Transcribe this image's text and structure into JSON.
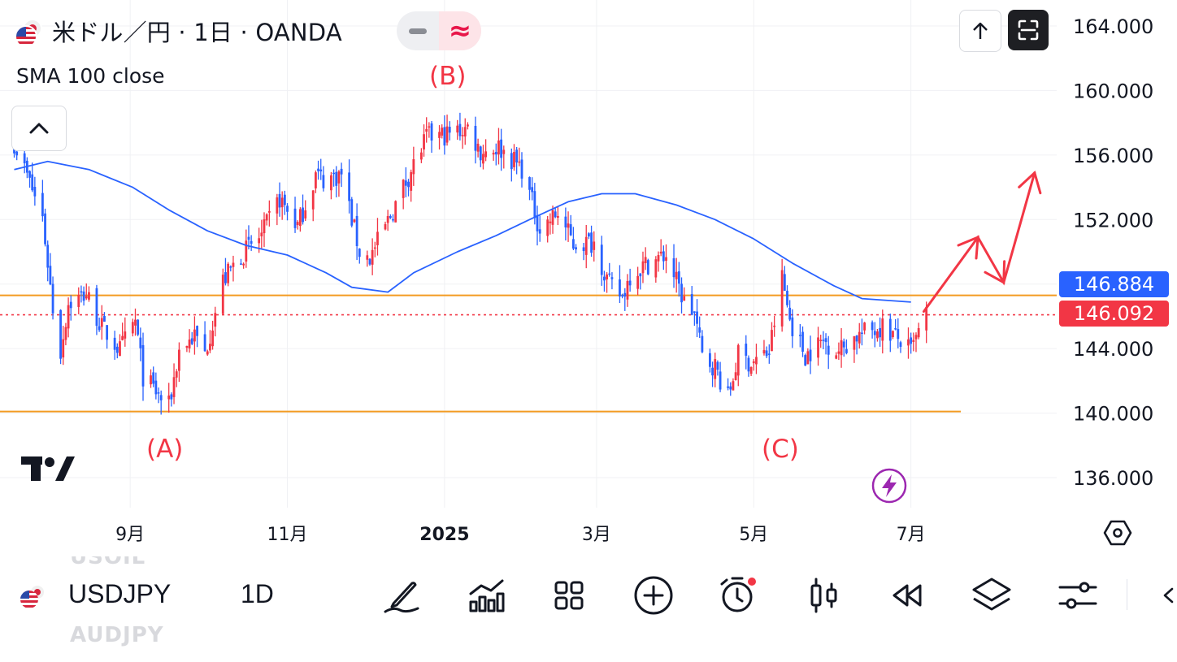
{
  "header": {
    "title": "米ドル／円 · 1日 · OANDA",
    "indicator": "SMA 100 close",
    "pill_glyph": "≈"
  },
  "colors": {
    "up": "#f23645",
    "down": "#2962ff",
    "sma": "#2962ff",
    "level": "#f39b22",
    "annotation": "#f23645",
    "bolt": "#9c27b0"
  },
  "annotations": {
    "a": "(A)",
    "b": "(B)",
    "c": "(C)"
  },
  "toolbar": {
    "symbol": "USDJPY",
    "interval": "1D",
    "ghost_above": "USOIL",
    "ghost_below": "AUDJPY",
    "icons": [
      "drawing-pen-icon",
      "indicators-icon",
      "layouts-icon",
      "add-icon",
      "alert-clock-icon",
      "candles-icon",
      "replay-icon",
      "layers-icon",
      "settings-sliders-icon",
      "more-chevron-icon"
    ]
  },
  "chart_data": {
    "type": "candlestick",
    "symbol": "米ドル／円",
    "interval": "1日",
    "source": "OANDA",
    "y_ticks": [
      "164.000",
      "160.000",
      "156.000",
      "152.000",
      "144.000",
      "140.000",
      "136.000"
    ],
    "x_ticks": [
      "9月",
      "11月",
      "2025",
      "3月",
      "5月",
      "7月"
    ],
    "ylim": [
      134.2,
      165.7
    ],
    "last_close": "146.092",
    "sma_value": "146.884",
    "horizontal_levels": [
      147.3,
      140.1
    ],
    "close_path": [
      [
        "2024-07-18",
        156.8
      ],
      [
        "2024-07-24",
        154.3
      ],
      [
        "2024-07-29",
        152.1
      ],
      [
        "2024-08-02",
        146.5
      ],
      [
        "2024-08-05",
        143.8
      ],
      [
        "2024-08-08",
        146.8
      ],
      [
        "2024-08-15",
        147.4
      ],
      [
        "2024-08-21",
        145.3
      ],
      [
        "2024-08-28",
        143.9
      ],
      [
        "2024-09-03",
        145.7
      ],
      [
        "2024-09-06",
        142.3
      ],
      [
        "2024-09-13",
        140.9
      ],
      [
        "2024-09-16",
        140.4
      ],
      [
        "2024-09-20",
        143.9
      ],
      [
        "2024-09-26",
        144.8
      ],
      [
        "2024-09-30",
        143.7
      ],
      [
        "2024-10-07",
        148.2
      ],
      [
        "2024-10-14",
        149.8
      ],
      [
        "2024-10-22",
        151.0
      ],
      [
        "2024-10-29",
        153.3
      ],
      [
        "2024-11-05",
        151.6
      ],
      [
        "2024-11-12",
        154.8
      ],
      [
        "2024-11-15",
        154.5
      ],
      [
        "2024-11-22",
        154.8
      ],
      [
        "2024-11-29",
        150.0
      ],
      [
        "2024-12-03",
        149.6
      ],
      [
        "2024-12-10",
        151.9
      ],
      [
        "2024-12-18",
        154.7
      ],
      [
        "2024-12-25",
        157.1
      ],
      [
        "2025-01-03",
        157.3
      ],
      [
        "2025-01-10",
        157.7
      ],
      [
        "2025-01-15",
        156.2
      ],
      [
        "2025-01-22",
        156.5
      ],
      [
        "2025-01-31",
        155.2
      ],
      [
        "2025-02-07",
        151.4
      ],
      [
        "2025-02-14",
        152.4
      ],
      [
        "2025-02-20",
        150.5
      ],
      [
        "2025-02-28",
        150.6
      ],
      [
        "2025-03-06",
        147.9
      ],
      [
        "2025-03-11",
        147.2
      ],
      [
        "2025-03-14",
        148.6
      ],
      [
        "2025-03-21",
        149.3
      ],
      [
        "2025-03-28",
        149.8
      ],
      [
        "2025-04-04",
        146.9
      ],
      [
        "2025-04-08",
        146.2
      ],
      [
        "2025-04-11",
        143.5
      ],
      [
        "2025-04-16",
        142.9
      ],
      [
        "2025-04-21",
        140.9
      ],
      [
        "2025-04-25",
        143.6
      ],
      [
        "2025-04-30",
        143.1
      ],
      [
        "2025-05-07",
        143.8
      ],
      [
        "2025-05-12",
        148.4
      ],
      [
        "2025-05-15",
        145.8
      ],
      [
        "2025-05-21",
        143.6
      ],
      [
        "2025-05-28",
        144.5
      ],
      [
        "2025-06-03",
        143.9
      ],
      [
        "2025-06-10",
        144.8
      ],
      [
        "2025-06-17",
        145.2
      ],
      [
        "2025-06-20",
        145.4
      ],
      [
        "2025-06-26",
        144.6
      ],
      [
        "2025-07-01",
        143.8
      ],
      [
        "2025-07-07",
        146.092
      ]
    ],
    "sma_100": [
      [
        "2024-07-18",
        155.1
      ],
      [
        "2024-07-31",
        155.6
      ],
      [
        "2024-08-16",
        155.1
      ],
      [
        "2024-09-02",
        154.0
      ],
      [
        "2024-09-16",
        152.6
      ],
      [
        "2024-10-01",
        151.3
      ],
      [
        "2024-10-16",
        150.4
      ],
      [
        "2024-11-01",
        149.8
      ],
      [
        "2024-11-16",
        148.7
      ],
      [
        "2024-11-26",
        147.8
      ],
      [
        "2024-12-10",
        147.5
      ],
      [
        "2024-12-20",
        148.7
      ],
      [
        "2025-01-06",
        150.0
      ],
      [
        "2025-01-21",
        151.0
      ],
      [
        "2025-02-03",
        152.0
      ],
      [
        "2025-02-18",
        153.1
      ],
      [
        "2025-03-03",
        153.6
      ],
      [
        "2025-03-16",
        153.6
      ],
      [
        "2025-04-01",
        152.9
      ],
      [
        "2025-04-16",
        152.0
      ],
      [
        "2025-05-01",
        150.8
      ],
      [
        "2025-05-16",
        149.3
      ],
      [
        "2025-06-01",
        147.9
      ],
      [
        "2025-06-12",
        147.1
      ],
      [
        "2025-07-01",
        146.884
      ]
    ],
    "forecast_path": [
      [
        "2025-07-06",
        146.3
      ],
      [
        "2025-07-27",
        150.9
      ],
      [
        "2025-08-06",
        148.1
      ],
      [
        "2025-08-18",
        154.9
      ]
    ]
  }
}
